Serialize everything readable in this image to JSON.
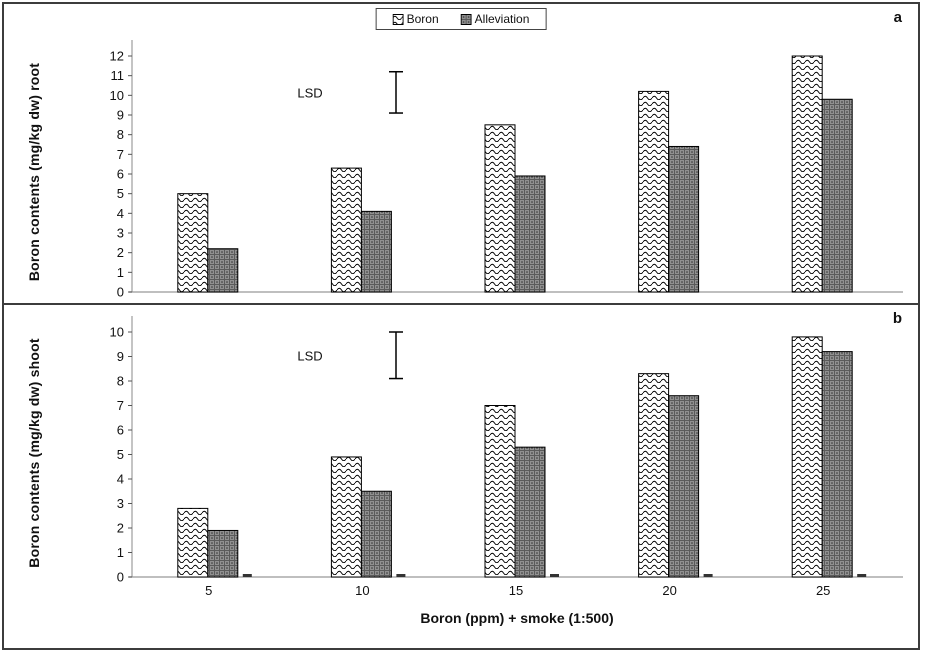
{
  "chart_data": [
    {
      "type": "bar",
      "panel_label": "a",
      "ylabel": "Boron contents (mg/kg dw) root",
      "xlabel": "",
      "categories": [
        "5",
        "10",
        "15",
        "20",
        "25"
      ],
      "series": [
        {
          "name": "Boron",
          "pattern": "wave",
          "values": [
            5.0,
            6.3,
            8.5,
            10.2,
            12.0
          ]
        },
        {
          "name": "Alleviation",
          "pattern": "grid",
          "values": [
            2.2,
            4.1,
            5.9,
            7.4,
            9.8
          ]
        }
      ],
      "ylim": [
        0,
        12
      ],
      "ytick_step": 1,
      "grid": false,
      "lsd": {
        "label": "LSD",
        "range": [
          9.1,
          11.2
        ]
      }
    },
    {
      "type": "bar",
      "panel_label": "b",
      "ylabel": "Boron contents (mg/kg dw) shoot",
      "xlabel": "Boron (ppm) + smoke (1:500)",
      "categories": [
        "5",
        "10",
        "15",
        "20",
        "25"
      ],
      "series": [
        {
          "name": "Boron",
          "pattern": "wave",
          "values": [
            2.8,
            4.9,
            7.0,
            8.3,
            9.8
          ]
        },
        {
          "name": "Alleviation",
          "pattern": "grid",
          "values": [
            1.9,
            3.5,
            5.3,
            7.4,
            9.2
          ]
        }
      ],
      "ylim": [
        0,
        10
      ],
      "ytick_step": 1,
      "grid": false,
      "near_zero_mark": 0.05,
      "lsd": {
        "label": "LSD",
        "range": [
          8.1,
          10.0
        ]
      }
    }
  ],
  "legend": {
    "position": "top-center",
    "items": [
      "Boron",
      "Alleviation"
    ]
  },
  "colors": {
    "frame": "#3c3c3c",
    "bar_stroke": "#000000",
    "alleviation_fill": "#909090",
    "baseline": "#aaaaaa",
    "text": "#111111"
  }
}
